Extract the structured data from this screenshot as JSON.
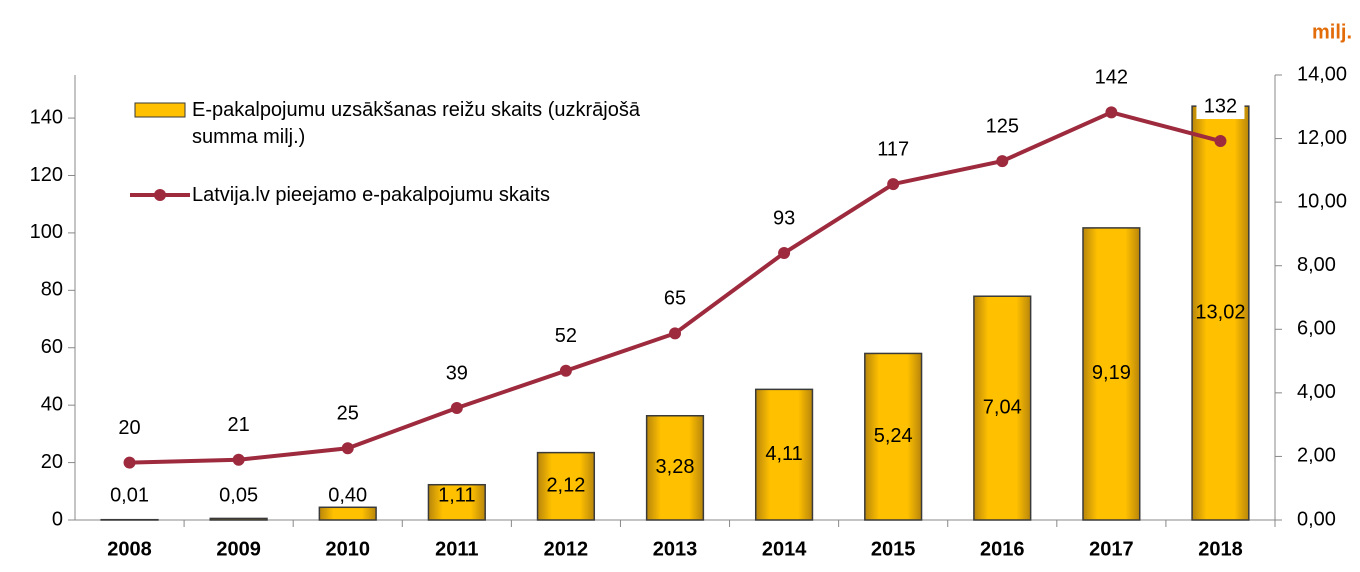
{
  "chart_data": {
    "type": "bar+line",
    "y2_label": "milj.",
    "categories": [
      "2008",
      "2009",
      "2010",
      "2011",
      "2012",
      "2013",
      "2014",
      "2015",
      "2016",
      "2017",
      "2018"
    ],
    "ylim": [
      0,
      155
    ],
    "yticks": [
      0,
      20,
      40,
      60,
      80,
      100,
      120,
      140
    ],
    "y2lim": [
      0,
      14
    ],
    "y2ticks": [
      {
        "value": 0,
        "label": "0,00"
      },
      {
        "value": 2,
        "label": "2,00"
      },
      {
        "value": 4,
        "label": "4,00"
      },
      {
        "value": 6,
        "label": "6,00"
      },
      {
        "value": 8,
        "label": "8,00"
      },
      {
        "value": 10,
        "label": "10,00"
      },
      {
        "value": 12,
        "label": "12,00"
      },
      {
        "value": 14,
        "label": "14,00"
      }
    ],
    "series": [
      {
        "name": "E-pakalpojumu uzsākšanas reižu skaits (uzkrājošā summa milj.)",
        "type": "bar",
        "axis": "y2",
        "color": "#FFC000",
        "values": [
          0.01,
          0.05,
          0.4,
          1.11,
          2.12,
          3.28,
          4.11,
          5.24,
          7.04,
          9.19,
          13.02
        ],
        "value_labels": [
          "0,01",
          "0,05",
          "0,40",
          "1,11",
          "2,12",
          "3,28",
          "4,11",
          "5,24",
          "7,04",
          "9,19",
          "13,02"
        ]
      },
      {
        "name": "Latvija.lv pieejamo e-pakalpojumu skaits",
        "type": "line",
        "color": "#9E2A3E",
        "values": [
          20,
          21,
          25,
          39,
          52,
          65,
          93,
          117,
          125,
          142,
          132
        ]
      }
    ]
  }
}
